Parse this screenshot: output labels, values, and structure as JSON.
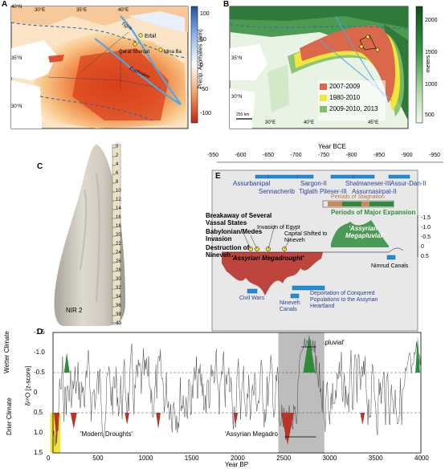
{
  "panel_a": {
    "letter": "A",
    "lat_labels": [
      "40°N",
      "35°N",
      "30°N"
    ],
    "lon_labels": [
      "30°E",
      "35°E",
      "40°E"
    ],
    "lon_labels_bottom": [
      "30°E"
    ],
    "places": [
      "Erbil",
      "Qal'at Sherqat",
      "Mina Ba"
    ],
    "rivers": [
      "Tigris",
      "Euphrates"
    ],
    "colorbar_ticks": [
      "100",
      "50",
      "0",
      "-50",
      "-100"
    ],
    "colorbar_label": "Precip. Anomalies (mm)"
  },
  "panel_b": {
    "letter": "B",
    "lat_labels": [
      "35°N",
      "30°N"
    ],
    "lon_labels": [
      "30°E",
      "40°E",
      "45°E"
    ],
    "scale": "250 km",
    "legend": [
      "2007-2009",
      "1980-2010",
      "2009-2010, 2013"
    ],
    "colorbar_ticks": [
      "2000",
      "1500",
      "1000",
      "500"
    ],
    "colorbar_label": "meters"
  },
  "panel_c": {
    "letter": "C",
    "sample": "NIR 2",
    "ruler_ticks": [
      "0",
      "2",
      "4",
      "6",
      "8",
      "10",
      "12",
      "14",
      "16",
      "18",
      "20",
      "22",
      "24",
      "26",
      "28",
      "30",
      "32",
      "34",
      "36",
      "38",
      "40"
    ]
  },
  "panel_e": {
    "letter": "E",
    "axis_title": "Year BCE",
    "axis_ticks": [
      "-550",
      "-600",
      "-650",
      "-700",
      "-750",
      "-800",
      "-850",
      "-900",
      "-950"
    ],
    "kings_top": [
      "Assurbanipal",
      "Sargon-II",
      "Shalmaneser-III",
      "Assur-Dan-II"
    ],
    "kings_bottom": [
      "Sennacherib",
      "Tiglath Pileser-III",
      "Assurnasirpal-II"
    ],
    "stagnation": "Periods of Stagnation",
    "expansion": "Periods of Major Expansion",
    "events": [
      "Breakaway of Several Vassal States",
      "Babylonian/Medes Invasion",
      "Destruction of Nineveh"
    ],
    "invasion_egypt": "Invasion of Egypt",
    "capital_shift": "Capital Shifted to Nineveh",
    "megapluvial": "'Assyrian Megapluvial'",
    "megadrought": "'Assyrian Megadrought'",
    "nimrud": "Nimrud Canals",
    "civil_wars": "Civil Wars",
    "nineveh_canals": "Nineveh Canals",
    "deportation": "Deportation of Conquered Populations to the Assyrian Heartland",
    "y_ticks": [
      "-1.5",
      "-1.0",
      "-0.5",
      "0",
      "0.5"
    ]
  },
  "panel_d": {
    "letter": "D",
    "y_ticks": [
      "-1.5",
      "-1.0",
      "-0.5",
      "0",
      "0.5",
      "1.0",
      "1.5"
    ],
    "wetter": "Wetter Climate",
    "drier": "Drier Climate",
    "y_label": "δ¹⁸O [z-score]",
    "x_label": "Year BP",
    "x_ticks": [
      "0",
      "500",
      "1000",
      "1500",
      "2000",
      "2500",
      "3000",
      "3500",
      "4000"
    ],
    "modern": "'Modern Droughts'",
    "megadrought": "'Assyrian Megadrought'",
    "megapluvial": "'Assyrian Megapluvial'"
  },
  "colors": {
    "wet": "#2e8b3a",
    "dry": "#b8332a",
    "shade": "#bdbdbd",
    "king": "#2b3f9e",
    "stagnation": "#c98a5a"
  }
}
